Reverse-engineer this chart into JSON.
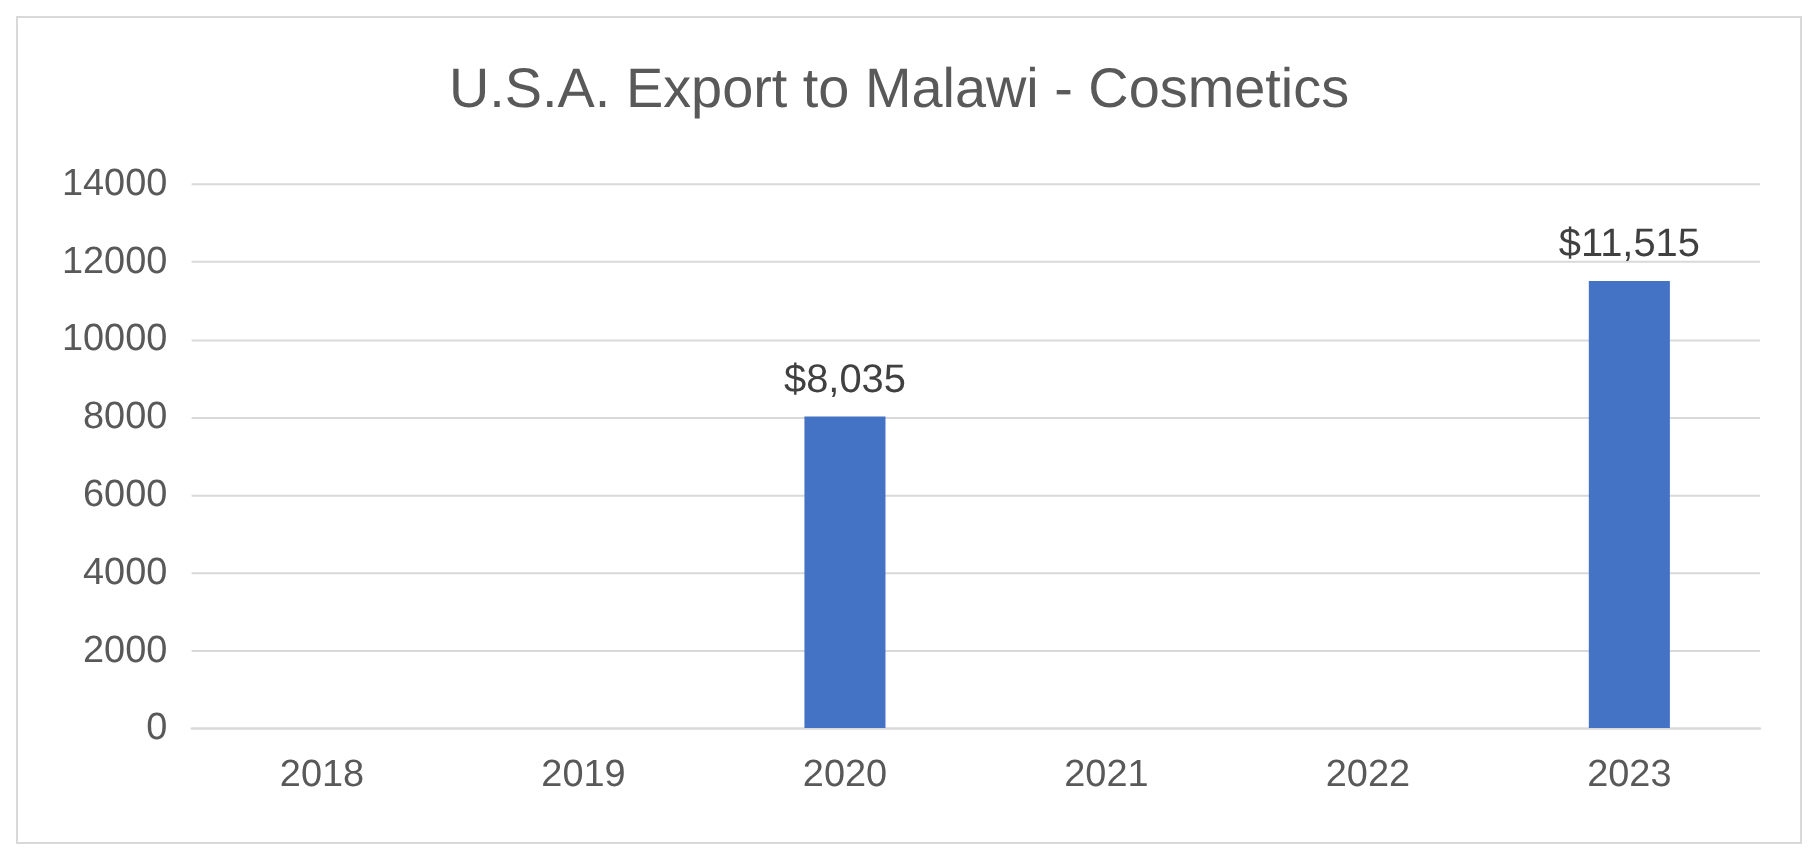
{
  "chart_data": {
    "type": "bar",
    "title": "U.S.A. Export to Malawi - Cosmetics",
    "categories": [
      "2018",
      "2019",
      "2020",
      "2021",
      "2022",
      "2023"
    ],
    "values": [
      null,
      null,
      8035,
      null,
      null,
      11515
    ],
    "value_labels": [
      null,
      null,
      "$8,035",
      null,
      null,
      "$11,515"
    ],
    "color": "#4472c4",
    "ylim": [
      0,
      14000
    ],
    "yticks": [
      0,
      2000,
      4000,
      6000,
      8000,
      10000,
      12000,
      14000
    ],
    "grid": "y",
    "legend": false
  }
}
